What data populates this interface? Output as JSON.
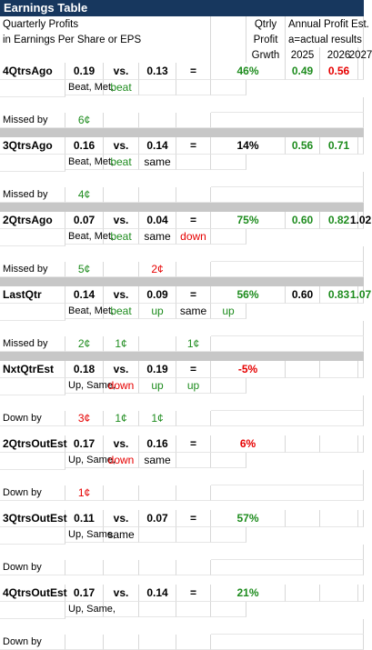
{
  "title": "Earnings Table",
  "header": {
    "line1": "Quarterly Profits",
    "line2": "in Earnings Per Share or EPS",
    "qtrly1": "Qtrly",
    "qtrly2": "Profit",
    "qtrly3": "Grwth",
    "annual1": "Annual Profit Est.",
    "annual2": "a=actual results",
    "y2025": "2025",
    "y2026": "2026",
    "y2027": "2027"
  },
  "labels": {
    "beat_met": "Beat, Met,",
    "missed_by": "Missed by",
    "up_same": "Up, Same,",
    "down_by": "Down by",
    "vs": "vs.",
    "eq": "="
  },
  "rows": [
    {
      "name": "4QtrsAgo",
      "cur": "0.19",
      "prev": "0.13",
      "growth": "46%",
      "a2025": "0.49",
      "a2026": "0.56",
      "a2027": "",
      "r2": [
        "beat",
        "",
        "",
        ""
      ],
      "r3": [
        "6¢",
        "",
        "",
        ""
      ]
    },
    {
      "name": "3QtrsAgo",
      "cur": "0.16",
      "prev": "0.14",
      "growth": "14%",
      "a2025": "0.56",
      "a2026": "0.71",
      "a2027": "",
      "r2": [
        "beat",
        "same",
        "",
        ""
      ],
      "r3": [
        "4¢",
        "",
        "",
        ""
      ]
    },
    {
      "name": "2QtrsAgo",
      "cur": "0.07",
      "prev": "0.04",
      "growth": "75%",
      "a2025": "0.60",
      "a2026": "0.82",
      "a2027": "1.02",
      "r2": [
        "beat",
        "same",
        "down",
        ""
      ],
      "r3": [
        "5¢",
        "",
        "2¢",
        ""
      ]
    },
    {
      "name": "LastQtr",
      "cur": "0.14",
      "prev": "0.09",
      "growth": "56%",
      "a2025": "0.60",
      "a2026": "0.83",
      "a2027": "1.07",
      "r2": [
        "beat",
        "up",
        "same",
        "up"
      ],
      "r3": [
        "2¢",
        "1¢",
        "",
        "1¢"
      ]
    },
    {
      "name": "NxtQtrEst",
      "cur": "0.18",
      "prev": "0.19",
      "growth": "-5%",
      "r2": [
        "down",
        "up",
        "up",
        ""
      ],
      "r3": [
        "3¢",
        "1¢",
        "1¢",
        ""
      ]
    },
    {
      "name": "2QtrsOutEst",
      "cur": "0.17",
      "prev": "0.16",
      "growth": "6%",
      "r2": [
        "down",
        "same",
        "",
        ""
      ],
      "r3": [
        "1¢",
        "",
        "",
        ""
      ]
    },
    {
      "name": "3QtrsOutEst",
      "cur": "0.11",
      "prev": "0.07",
      "growth": "57%",
      "r2": [
        "same",
        "",
        "",
        ""
      ],
      "r3": [
        "",
        "",
        "",
        ""
      ]
    },
    {
      "name": "4QtrsOutEst",
      "cur": "0.17",
      "prev": "0.14",
      "growth": "21%",
      "r2": [
        "",
        "",
        "",
        ""
      ],
      "r3": [
        "",
        "",
        "",
        ""
      ]
    }
  ],
  "colors": {
    "title_bg": "#17375e",
    "green": "#1e8c1e",
    "red": "#e60000",
    "separator": "#c7c7c7"
  }
}
